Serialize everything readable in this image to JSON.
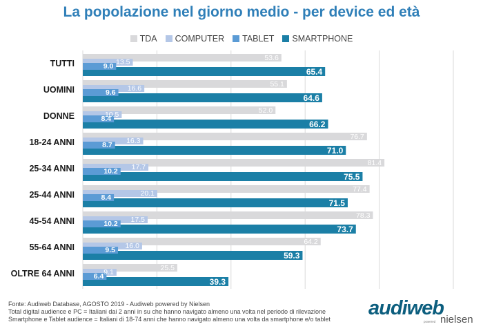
{
  "title": "La popolazione nel giorno medio - per device ed età",
  "footnotes": [
    "Fonte: Audiweb Database, AGOSTO 2019 - Audiweb powered by Nielsen",
    "Total digital audience e PC = Italiani dai 2 anni in su che hanno navigato almeno una volta nel periodo di rilevazione",
    "Smartphone e Tablet audience = Italiani di 18-74 anni che hanno navigato almeno una volta da smartphone e/o tablet"
  ],
  "logo": {
    "brand_pre": "aud",
    "brand_slash": "i",
    "brand_post": "web",
    "powered": "powered",
    "partner": "nielsen"
  },
  "colors": {
    "TDA": "#d9d9db",
    "COMPUTER": "#b4c7e7",
    "TABLET": "#5b9bd5",
    "SMARTPHONE": "#1b7fa6",
    "grid": "#d9d9d9"
  },
  "chart_data": {
    "type": "bar",
    "orientation": "horizontal",
    "categories": [
      "TUTTI",
      "UOMINI",
      "DONNE",
      "18-24 ANNI",
      "25-34 ANNI",
      "25-44 ANNI",
      "45-54 ANNI",
      "55-64 ANNI",
      "OLTRE 64 ANNI"
    ],
    "series": [
      {
        "name": "TDA",
        "values": [
          53.6,
          55.1,
          52.0,
          76.7,
          81.4,
          77.4,
          78.3,
          64.2,
          25.5
        ]
      },
      {
        "name": "COMPUTER",
        "values": [
          13.5,
          16.6,
          10.5,
          16.3,
          17.7,
          20.1,
          17.5,
          16.0,
          9.1
        ]
      },
      {
        "name": "TABLET",
        "values": [
          9.0,
          9.6,
          8.4,
          8.7,
          10.2,
          8.4,
          10.2,
          9.5,
          6.4
        ]
      },
      {
        "name": "SMARTPHONE",
        "values": [
          65.4,
          64.6,
          66.2,
          71.0,
          75.5,
          71.5,
          73.7,
          59.3,
          39.3
        ]
      }
    ],
    "xlim": [
      0,
      100
    ],
    "grid": true,
    "legend_position": "top"
  }
}
